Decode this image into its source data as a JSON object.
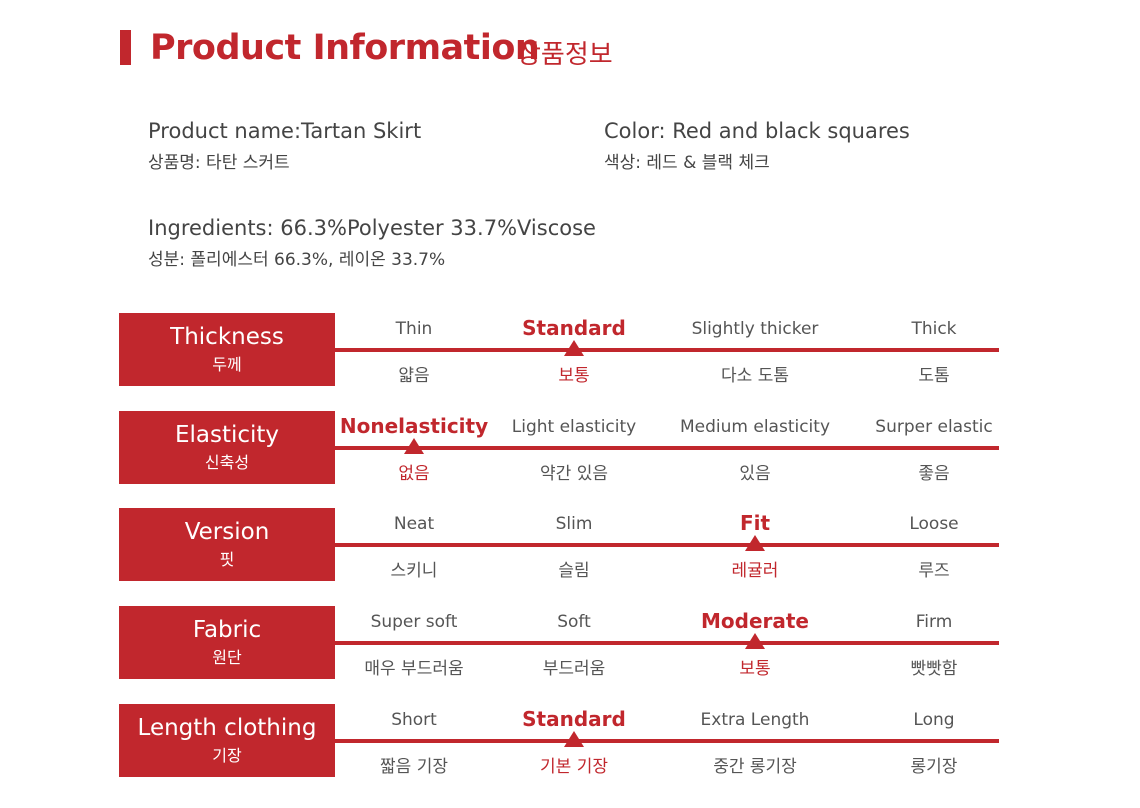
{
  "header": {
    "title_en": "Product Information",
    "title_ko": "상품정보",
    "accent_color": "#c1272d"
  },
  "info": {
    "name_en": "Product name:Tartan Skirt",
    "name_ko": "상품명: 타탄 스커트",
    "color_en": "Color: Red and black squares",
    "color_ko": "색상: 레드 & 블랙 체크",
    "ingredients_en": "Ingredients: 66.3%Polyester 33.7%Viscose",
    "ingredients_ko": "성분: 폴리에스터 66.3%, 레이온 33.7%"
  },
  "scales": [
    {
      "label_en": "Thickness",
      "label_ko": "두께",
      "selected_index": 1,
      "options": [
        {
          "en": "Thin",
          "ko": "얇음"
        },
        {
          "en": "Standard",
          "ko": "보통"
        },
        {
          "en": "Slightly thicker",
          "ko": "다소 도톰"
        },
        {
          "en": "Thick",
          "ko": "도톰"
        }
      ]
    },
    {
      "label_en": "Elasticity",
      "label_ko": "신축성",
      "selected_index": 0,
      "options": [
        {
          "en": "Nonelasticity",
          "ko": "없음"
        },
        {
          "en": "Light elasticity",
          "ko": "약간 있음"
        },
        {
          "en": "Medium elasticity",
          "ko": "있음"
        },
        {
          "en": "Surper elastic",
          "ko": "좋음"
        }
      ]
    },
    {
      "label_en": "Version",
      "label_ko": "핏",
      "selected_index": 2,
      "options": [
        {
          "en": "Neat",
          "ko": "스키니"
        },
        {
          "en": "Slim",
          "ko": "슬림"
        },
        {
          "en": "Fit",
          "ko": "레귤러"
        },
        {
          "en": "Loose",
          "ko": "루즈"
        }
      ]
    },
    {
      "label_en": "Fabric",
      "label_ko": "원단",
      "selected_index": 2,
      "options": [
        {
          "en": "Super soft",
          "ko": "매우 부드러움"
        },
        {
          "en": "Soft",
          "ko": "부드러움"
        },
        {
          "en": "Moderate",
          "ko": "보통"
        },
        {
          "en": "Firm",
          "ko": "빳빳함"
        }
      ]
    },
    {
      "label_en": "Length clothing",
      "label_ko": "기장",
      "selected_index": 1,
      "options": [
        {
          "en": "Short",
          "ko": "짧음 기장"
        },
        {
          "en": "Standard",
          "ko": "기본 기장"
        },
        {
          "en": "Extra Length",
          "ko": "중간 롱기장"
        },
        {
          "en": "Long",
          "ko": "롱기장"
        }
      ]
    }
  ]
}
